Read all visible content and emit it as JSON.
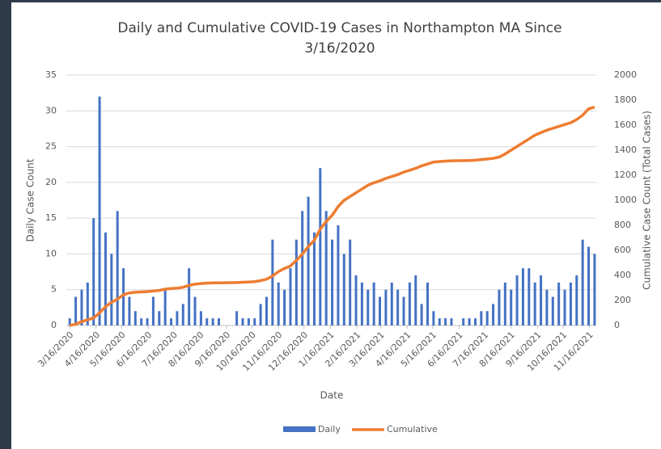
{
  "chart_data": {
    "type": "bar_line",
    "title": [
      "Daily and Cumulative COVID-19 Cases in Northampton MA Since",
      "3/16/2020"
    ],
    "x_label": "Date",
    "y_label": "Daily Case Count",
    "y2_label": "Cumulative Case Count (Total Cases)",
    "x": [
      "2020-03-16",
      "2020-03-23",
      "2020-03-30",
      "2020-04-06",
      "2020-04-13",
      "2020-04-20",
      "2020-04-27",
      "2020-05-04",
      "2020-05-11",
      "2020-05-18",
      "2020-05-25",
      "2020-06-01",
      "2020-06-08",
      "2020-06-15",
      "2020-06-22",
      "2020-06-29",
      "2020-07-06",
      "2020-07-13",
      "2020-07-20",
      "2020-07-27",
      "2020-08-03",
      "2020-08-10",
      "2020-08-17",
      "2020-08-24",
      "2020-08-31",
      "2020-09-07",
      "2020-09-14",
      "2020-09-21",
      "2020-09-28",
      "2020-10-05",
      "2020-10-12",
      "2020-10-19",
      "2020-10-26",
      "2020-11-02",
      "2020-11-09",
      "2020-11-16",
      "2020-11-23",
      "2020-11-30",
      "2020-12-07",
      "2020-12-14",
      "2020-12-21",
      "2020-12-28",
      "2021-01-04",
      "2021-01-11",
      "2021-01-18",
      "2021-01-25",
      "2021-02-01",
      "2021-02-08",
      "2021-02-15",
      "2021-02-22",
      "2021-03-01",
      "2021-03-08",
      "2021-03-15",
      "2021-03-22",
      "2021-03-29",
      "2021-04-05",
      "2021-04-12",
      "2021-04-19",
      "2021-04-26",
      "2021-05-03",
      "2021-05-10",
      "2021-05-17",
      "2021-05-24",
      "2021-05-31",
      "2021-06-07",
      "2021-06-14",
      "2021-06-21",
      "2021-06-28",
      "2021-07-05",
      "2021-07-12",
      "2021-07-19",
      "2021-07-26",
      "2021-08-02",
      "2021-08-09",
      "2021-08-16",
      "2021-08-23",
      "2021-08-30",
      "2021-09-06",
      "2021-09-13",
      "2021-09-20",
      "2021-09-27",
      "2021-10-04",
      "2021-10-11",
      "2021-10-18",
      "2021-10-25",
      "2021-11-01",
      "2021-11-08",
      "2021-11-15",
      "2021-11-22"
    ],
    "series": [
      {
        "name": "Daily",
        "color": "#4472c4",
        "kind": "bar",
        "values": [
          1,
          4,
          5,
          6,
          15,
          32,
          13,
          10,
          16,
          8,
          4,
          2,
          1,
          1,
          4,
          2,
          5,
          1,
          2,
          3,
          8,
          4,
          2,
          1,
          1,
          1,
          0,
          0,
          2,
          1,
          1,
          1,
          3,
          4,
          12,
          6,
          5,
          8,
          12,
          16,
          18,
          13,
          22,
          16,
          12,
          14,
          10,
          12,
          7,
          6,
          5,
          6,
          4,
          5,
          6,
          5,
          4,
          6,
          7,
          3,
          6,
          2,
          1,
          1,
          1,
          0,
          1,
          1,
          1,
          2,
          2,
          3,
          5,
          6,
          5,
          7,
          8,
          8,
          6,
          7,
          5,
          4,
          6,
          5,
          6,
          7,
          12,
          11,
          10
        ]
      },
      {
        "name": "Cumulative",
        "color": "#ed7d31",
        "kind": "line",
        "axis": "y2",
        "values": [
          0,
          10,
          30,
          45,
          60,
          100,
          150,
          185,
          210,
          245,
          260,
          265,
          268,
          270,
          275,
          280,
          290,
          295,
          298,
          305,
          320,
          330,
          335,
          338,
          340,
          340,
          341,
          342,
          343,
          345,
          347,
          350,
          358,
          370,
          395,
          430,
          455,
          475,
          520,
          570,
          630,
          680,
          770,
          830,
          880,
          950,
          1000,
          1030,
          1060,
          1090,
          1120,
          1140,
          1155,
          1175,
          1190,
          1205,
          1225,
          1240,
          1255,
          1275,
          1290,
          1305,
          1310,
          1313,
          1315,
          1316,
          1317,
          1318,
          1320,
          1325,
          1330,
          1335,
          1345,
          1370,
          1400,
          1430,
          1460,
          1490,
          1520,
          1540,
          1560,
          1575,
          1590,
          1605,
          1620,
          1645,
          1680,
          1730,
          1745
        ]
      }
    ],
    "xlim": [
      "2020-03-12",
      "2021-11-24"
    ],
    "xticks": [
      {
        "value": "2020-03-16",
        "label": "3/16/2020"
      },
      {
        "value": "2020-04-16",
        "label": "4/16/2020"
      },
      {
        "value": "2020-05-16",
        "label": "5/16/2020"
      },
      {
        "value": "2020-06-16",
        "label": "6/16/2020"
      },
      {
        "value": "2020-07-16",
        "label": "7/16/2020"
      },
      {
        "value": "2020-08-16",
        "label": "8/16/2020"
      },
      {
        "value": "2020-09-16",
        "label": "9/16/2020"
      },
      {
        "value": "2020-10-16",
        "label": "10/16/2020"
      },
      {
        "value": "2020-11-16",
        "label": "11/16/2020"
      },
      {
        "value": "2020-12-16",
        "label": "12/16/2020"
      },
      {
        "value": "2021-01-16",
        "label": "1/16/2021"
      },
      {
        "value": "2021-02-16",
        "label": "2/16/2021"
      },
      {
        "value": "2021-03-16",
        "label": "3/16/2021"
      },
      {
        "value": "2021-04-16",
        "label": "4/16/2021"
      },
      {
        "value": "2021-05-16",
        "label": "5/16/2021"
      },
      {
        "value": "2021-06-16",
        "label": "6/16/2021"
      },
      {
        "value": "2021-07-16",
        "label": "7/16/2021"
      },
      {
        "value": "2021-08-16",
        "label": "8/16/2021"
      },
      {
        "value": "2021-09-16",
        "label": "9/16/2021"
      },
      {
        "value": "2021-10-16",
        "label": "10/16/2021"
      },
      {
        "value": "2021-11-16",
        "label": "11/16/2021"
      }
    ],
    "ylim": [
      0,
      35
    ],
    "yticks": [
      0,
      5,
      10,
      15,
      20,
      25,
      30,
      35
    ],
    "y2lim": [
      0,
      2000
    ],
    "y2ticks": [
      0,
      200,
      400,
      600,
      800,
      1000,
      1200,
      1400,
      1600,
      1800,
      2000
    ],
    "grid": true,
    "legend": "bottom"
  }
}
